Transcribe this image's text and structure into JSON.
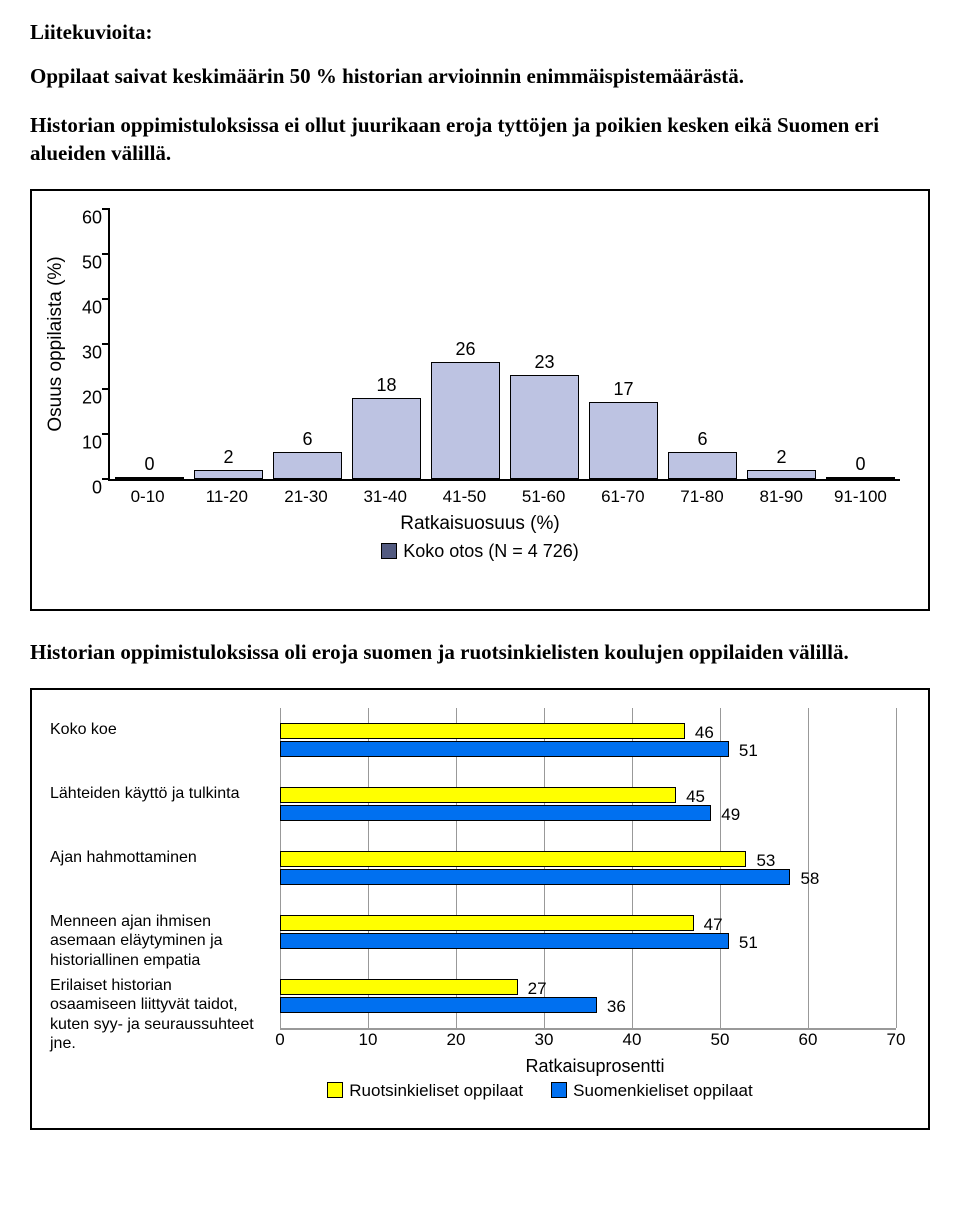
{
  "text": {
    "heading": "Liitekuvioita:",
    "para1": "Oppilaat saivat keskimäärin 50 % historian arvioinnin enimmäispistemäärästä.",
    "para2": "Historian oppimistuloksissa ei ollut juurikaan eroja tyttöjen ja poikien kesken eikä Suomen eri alueiden välillä.",
    "para3": "Historian oppimistuloksissa oli eroja suomen ja ruotsinkielisten koulujen oppilaiden välillä."
  },
  "hist": {
    "type": "bar",
    "categories": [
      "0-10",
      "11-20",
      "21-30",
      "31-40",
      "41-50",
      "51-60",
      "61-70",
      "71-80",
      "81-90",
      "91-100"
    ],
    "values": [
      0,
      2,
      6,
      18,
      26,
      23,
      17,
      6,
      2,
      0
    ],
    "bar_color": "#bdc3e2",
    "bar_border": "#000000",
    "ylim": [
      0,
      60
    ],
    "ytick_step": 10,
    "ylabel": "Osuus oppilaista (%)",
    "xlabel": "Ratkaisuosuus (%)",
    "legend_label": "Koko otos (N = 4 726)",
    "legend_swatch": "#535b81",
    "background": "#ffffff",
    "label_fontsize": 18,
    "axis_fontsize": 19
  },
  "comp": {
    "type": "grouped-horizontal-bar",
    "categories": [
      "Koko koe",
      "Lähteiden käyttö ja tulkinta",
      "Ajan hahmottaminen",
      "Menneen ajan ihmisen asemaan eläytyminen ja historiallinen empatia",
      "Erilaiset historian osaamiseen liittyvät taidot, kuten syy- ja seuraussuhteet jne."
    ],
    "series": [
      {
        "name": "Ruotsinkieliset oppilaat",
        "color": "#ffff00",
        "values": [
          46,
          45,
          53,
          47,
          27
        ]
      },
      {
        "name": "Suomenkieliset oppilaat",
        "color": "#0070f0",
        "values": [
          51,
          49,
          58,
          51,
          36
        ]
      }
    ],
    "bar_border": "#000000",
    "xlim": [
      0,
      70
    ],
    "xtick_step": 10,
    "xlabel": "Ratkaisuprosentti",
    "grid_color": "#999999",
    "background": "#ffffff",
    "label_fontsize": 17
  }
}
